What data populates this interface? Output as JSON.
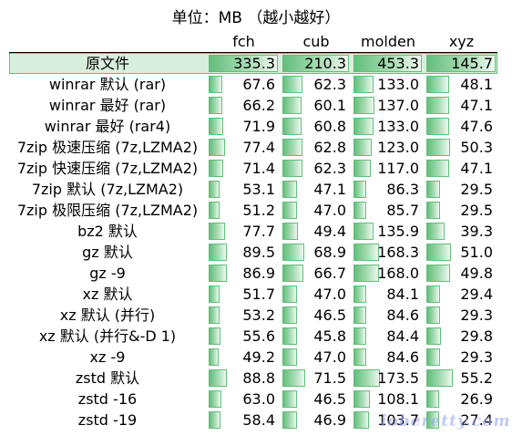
{
  "caption": "单位：MB （越小越好）",
  "watermark": "ioberetty.com",
  "bar_color": "#63be7b",
  "highlight_color": "#d8efdd",
  "chart_data": {
    "type": "table",
    "title": "单位：MB （越小越好）",
    "columns": [
      "fch",
      "cub",
      "molden",
      "xyz"
    ],
    "rows": [
      {
        "label": "原文件",
        "values": [
          "335.3",
          "210.3",
          "453.3",
          "145.7"
        ],
        "highlight": true
      },
      {
        "label": "winrar 默认 (rar)",
        "values": [
          "67.6",
          "62.3",
          "133.0",
          "48.1"
        ]
      },
      {
        "label": "winrar 最好 (rar)",
        "values": [
          "66.2",
          "60.1",
          "137.0",
          "47.1"
        ]
      },
      {
        "label": "winrar 最好 (rar4)",
        "values": [
          "71.9",
          "60.8",
          "133.0",
          "47.6"
        ]
      },
      {
        "label": "7zip 极速压缩 (7z,LZMA2)",
        "values": [
          "77.4",
          "62.8",
          "123.0",
          "50.3"
        ]
      },
      {
        "label": "7zip 快速压缩 (7z,LZMA2)",
        "values": [
          "71.4",
          "62.3",
          "117.0",
          "47.1"
        ]
      },
      {
        "label": "7zip 默认 (7z,LZMA2)",
        "values": [
          "53.1",
          "47.1",
          "86.3",
          "29.5"
        ]
      },
      {
        "label": "7zip 极限压缩 (7z,LZMA2)",
        "values": [
          "51.2",
          "47.0",
          "85.7",
          "29.5"
        ]
      },
      {
        "label": "bz2 默认",
        "values": [
          "77.7",
          "49.4",
          "135.9",
          "39.3"
        ]
      },
      {
        "label": "gz 默认",
        "values": [
          "89.5",
          "68.9",
          "168.3",
          "51.0"
        ]
      },
      {
        "label": "gz -9",
        "values": [
          "86.9",
          "66.7",
          "168.0",
          "49.8"
        ]
      },
      {
        "label": "xz 默认",
        "values": [
          "51.7",
          "47.0",
          "84.1",
          "29.4"
        ]
      },
      {
        "label": "xz 默认 (并行)",
        "values": [
          "53.2",
          "46.5",
          "84.6",
          "29.3"
        ]
      },
      {
        "label": "xz 默认 (并行&-D 1)",
        "values": [
          "55.6",
          "45.8",
          "84.4",
          "29.8"
        ]
      },
      {
        "label": "xz -9",
        "values": [
          "49.2",
          "47.0",
          "84.6",
          "29.3"
        ]
      },
      {
        "label": "zstd 默认",
        "values": [
          "88.8",
          "71.5",
          "173.5",
          "55.2"
        ]
      },
      {
        "label": "zstd -16",
        "values": [
          "63.0",
          "46.5",
          "108.1",
          "26.9"
        ]
      },
      {
        "label": "zstd -19",
        "values": [
          "58.4",
          "46.9",
          "103.7",
          "27.4"
        ]
      }
    ]
  }
}
